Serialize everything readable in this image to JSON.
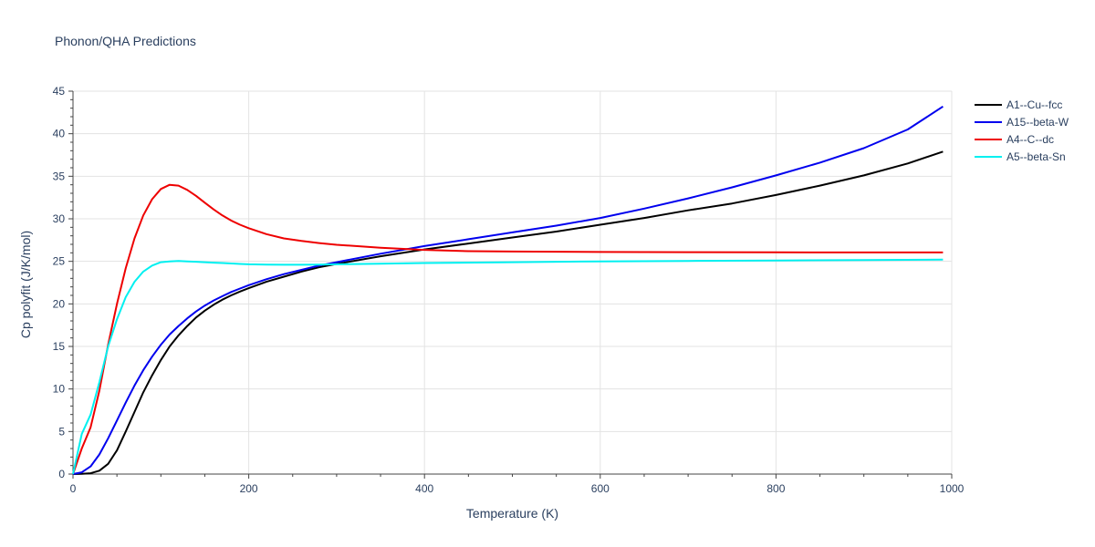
{
  "chart_data": {
    "type": "line",
    "title": "Phonon/QHA Predictions",
    "xlabel": "Temperature (K)",
    "ylabel": "Cp polyfit (J/K/mol)",
    "xlim": [
      0,
      1000
    ],
    "ylim": [
      0,
      45
    ],
    "xticks": [
      0,
      200,
      400,
      600,
      800,
      1000
    ],
    "yticks": [
      0,
      5,
      10,
      15,
      20,
      25,
      30,
      35,
      40,
      45
    ],
    "grid": true,
    "legend_position": "top-right",
    "series": [
      {
        "name": "A1--Cu--fcc",
        "color": "#000000",
        "x": [
          0,
          10,
          20,
          30,
          40,
          50,
          60,
          70,
          80,
          90,
          100,
          110,
          120,
          130,
          140,
          150,
          160,
          170,
          180,
          190,
          200,
          220,
          240,
          260,
          280,
          300,
          350,
          400,
          450,
          500,
          550,
          600,
          650,
          700,
          750,
          800,
          850,
          900,
          950,
          990
        ],
        "y": [
          0,
          0.02,
          0.1,
          0.4,
          1.2,
          2.8,
          5.0,
          7.3,
          9.6,
          11.6,
          13.4,
          15.0,
          16.3,
          17.4,
          18.4,
          19.2,
          19.9,
          20.5,
          21.0,
          21.45,
          21.85,
          22.6,
          23.2,
          23.8,
          24.3,
          24.7,
          25.6,
          26.4,
          27.1,
          27.8,
          28.5,
          29.3,
          30.1,
          31.0,
          31.8,
          32.8,
          33.9,
          35.1,
          36.5,
          37.9
        ]
      },
      {
        "name": "A15--beta-W",
        "color": "#0000ee",
        "x": [
          0,
          10,
          20,
          30,
          40,
          50,
          60,
          70,
          80,
          90,
          100,
          110,
          120,
          130,
          140,
          150,
          160,
          170,
          180,
          190,
          200,
          220,
          240,
          260,
          280,
          300,
          350,
          400,
          450,
          500,
          550,
          600,
          650,
          700,
          750,
          800,
          850,
          900,
          950,
          990
        ],
        "y": [
          0,
          0.2,
          0.9,
          2.3,
          4.2,
          6.3,
          8.4,
          10.4,
          12.2,
          13.8,
          15.2,
          16.4,
          17.4,
          18.3,
          19.1,
          19.8,
          20.4,
          20.9,
          21.4,
          21.8,
          22.2,
          22.9,
          23.5,
          24.0,
          24.5,
          24.9,
          25.9,
          26.8,
          27.6,
          28.4,
          29.2,
          30.1,
          31.2,
          32.4,
          33.7,
          35.1,
          36.6,
          38.3,
          40.5,
          43.2
        ]
      },
      {
        "name": "A4--C--dc",
        "color": "#ee0000",
        "x": [
          0,
          10,
          20,
          30,
          40,
          50,
          60,
          70,
          80,
          90,
          100,
          110,
          120,
          130,
          140,
          150,
          160,
          170,
          180,
          190,
          200,
          220,
          240,
          260,
          280,
          300,
          350,
          400,
          450,
          500,
          600,
          700,
          800,
          900,
          990
        ],
        "y": [
          0,
          3.0,
          5.5,
          9.8,
          15.2,
          20.0,
          24.2,
          27.7,
          30.4,
          32.3,
          33.5,
          34.0,
          33.9,
          33.4,
          32.7,
          31.9,
          31.1,
          30.4,
          29.8,
          29.3,
          28.9,
          28.2,
          27.7,
          27.4,
          27.15,
          26.95,
          26.6,
          26.35,
          26.2,
          26.15,
          26.1,
          26.08,
          26.06,
          26.05,
          26.05
        ]
      },
      {
        "name": "A5--beta-Sn",
        "color": "#00f0f0",
        "x": [
          0,
          10,
          20,
          30,
          40,
          50,
          60,
          70,
          80,
          90,
          100,
          110,
          120,
          130,
          140,
          150,
          160,
          170,
          180,
          190,
          200,
          220,
          240,
          260,
          280,
          300,
          350,
          400,
          500,
          600,
          700,
          800,
          900,
          990
        ],
        "y": [
          0,
          4.7,
          7.0,
          10.8,
          15.0,
          18.2,
          20.8,
          22.6,
          23.8,
          24.5,
          24.9,
          25.0,
          25.05,
          25.0,
          24.95,
          24.9,
          24.85,
          24.8,
          24.75,
          24.7,
          24.65,
          24.62,
          24.6,
          24.6,
          24.62,
          24.65,
          24.72,
          24.8,
          24.9,
          25.0,
          25.05,
          25.1,
          25.15,
          25.2
        ]
      }
    ]
  }
}
